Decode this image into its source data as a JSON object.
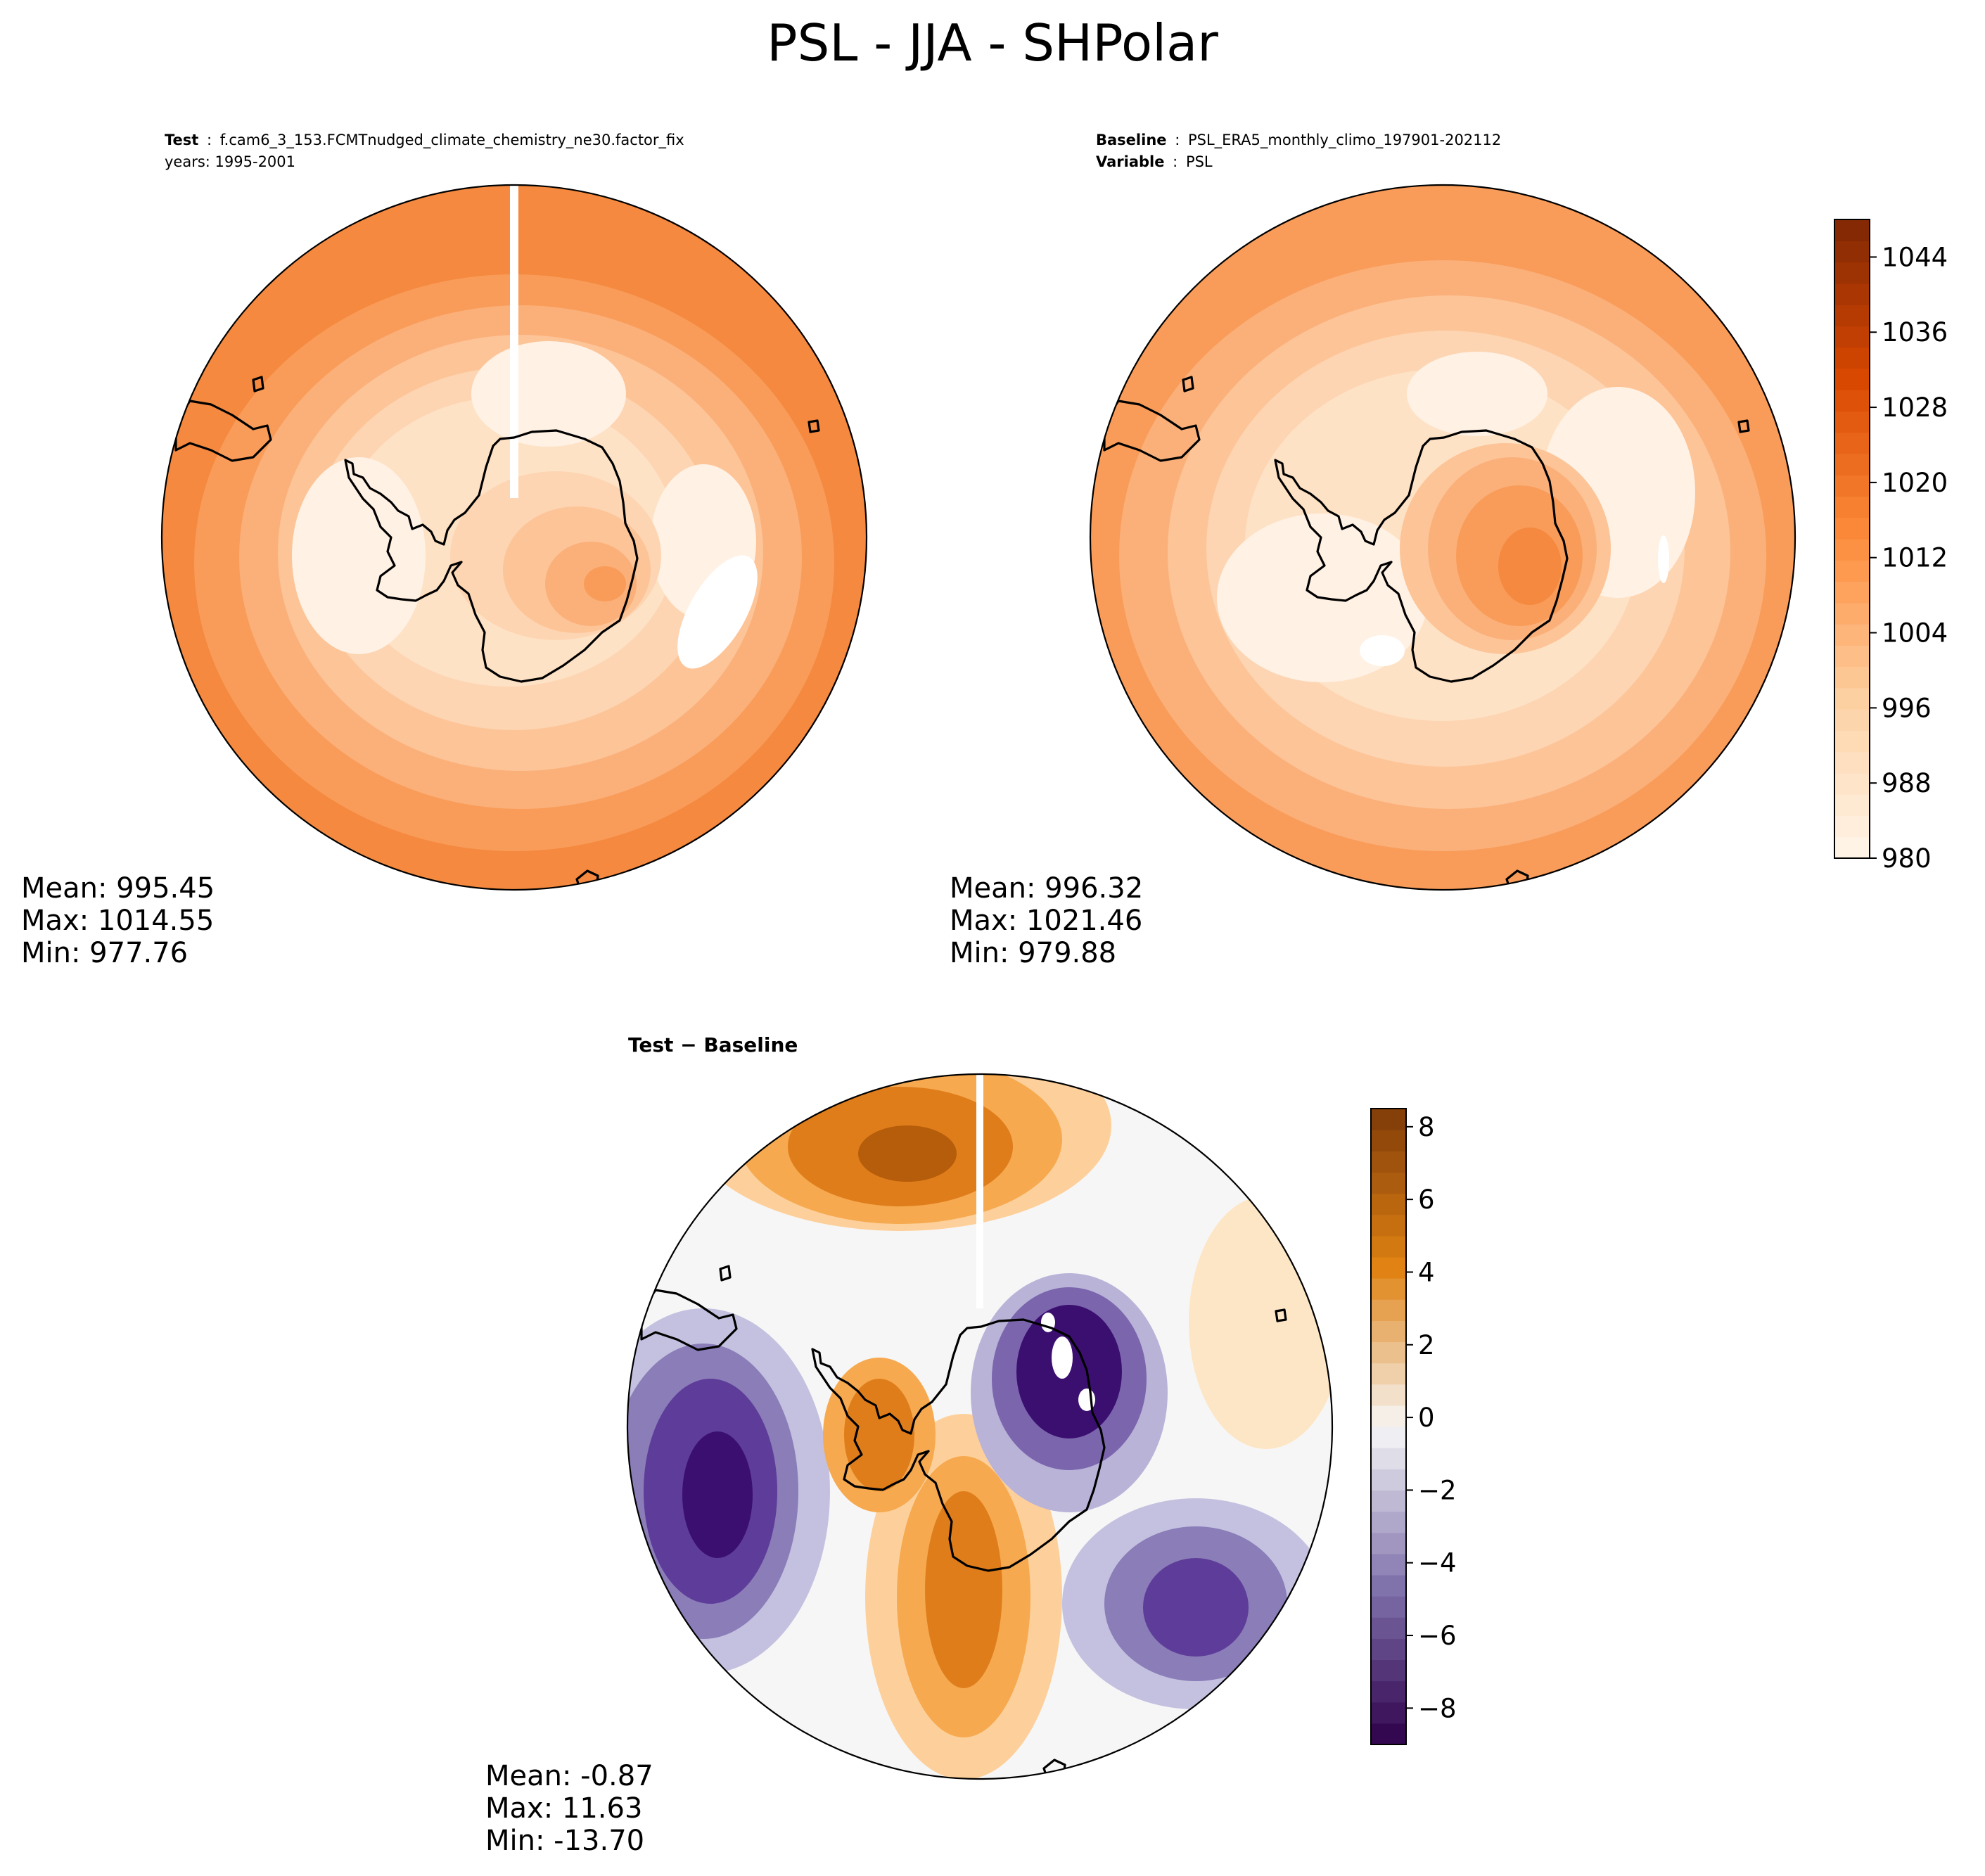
{
  "figure": {
    "suptitle": "PSL - JJA - SHPolar"
  },
  "panels": [
    {
      "id": "test",
      "title_lines": [
        {
          "key": "Test",
          "sep": ":",
          "value": "f.cam6_3_153.FCMTnudged_climate_chemistry_ne30.factor_fix"
        },
        {
          "key": "",
          "sep": "",
          "value": "years: 1995-2001"
        }
      ],
      "stats": {
        "mean": "Mean: 995.45",
        "max": "Max: 1014.55",
        "min": "Min: 977.76"
      }
    },
    {
      "id": "baseline",
      "title_lines": [
        {
          "key": "Baseline",
          "sep": ":",
          "value": "PSL_ERA5_monthly_climo_197901-202112"
        },
        {
          "key": "Variable",
          "sep": ":",
          "value": "PSL"
        }
      ],
      "stats": {
        "mean": "Mean: 996.32",
        "max": "Max: 1021.46",
        "min": "Min: 979.88"
      }
    },
    {
      "id": "diff",
      "title_text": "Test − Baseline",
      "stats": {
        "mean": "Mean: -0.87",
        "max": "Max: 11.63",
        "min": "Min: -13.70"
      }
    }
  ],
  "colorbars": [
    {
      "id": "field",
      "cmap": "Oranges",
      "vmin": 980,
      "vmax": 1048,
      "ticks": [
        980,
        988,
        996,
        1004,
        1012,
        1020,
        1028,
        1036,
        1044
      ],
      "tick_labels": [
        "980",
        "988",
        "996",
        "1004",
        "1012",
        "1020",
        "1028",
        "1036",
        "1044"
      ]
    },
    {
      "id": "diff",
      "cmap": "PuOr_r",
      "vmin": -9,
      "vmax": 8.5,
      "ticks": [
        -8,
        -6,
        -4,
        -2,
        0,
        2,
        4,
        6,
        8
      ],
      "tick_labels": [
        "−8",
        "−6",
        "−4",
        "−2",
        "0",
        "2",
        "4",
        "6",
        "8"
      ]
    }
  ],
  "chart_data": [
    {
      "type": "heatmap",
      "title": "Test : f.cam6_3_153.FCMTnudged_climate_chemistry_ne30.factor_fix years: 1995-2001",
      "projection": "south polar stereographic",
      "variable": "PSL",
      "stats": {
        "mean": 995.45,
        "max": 1014.55,
        "min": 977.76
      },
      "field_features": [
        {
          "lon": 0,
          "lat": -90,
          "value": 1004
        },
        {
          "lon": 60,
          "lat": -85,
          "value": 1010
        },
        {
          "lon": -90,
          "lat": -62,
          "value": 980
        },
        {
          "lon": 90,
          "lat": -58,
          "value": 979
        },
        {
          "lon": 120,
          "lat": -55,
          "value": 982
        },
        {
          "lon": -150,
          "lat": -45,
          "value": 1012
        },
        {
          "lon": 30,
          "lat": -42,
          "value": 1010
        }
      ]
    },
    {
      "type": "heatmap",
      "title": "Baseline : PSL_ERA5_monthly_climo_197901-202112 Variable : PSL",
      "projection": "south polar stereographic",
      "variable": "PSL",
      "stats": {
        "mean": 996.32,
        "max": 1021.46,
        "min": 979.88
      },
      "field_features": [
        {
          "lon": 0,
          "lat": -90,
          "value": 1006
        },
        {
          "lon": 60,
          "lat": -80,
          "value": 1014
        },
        {
          "lon": -90,
          "lat": -62,
          "value": 982
        },
        {
          "lon": 90,
          "lat": -58,
          "value": 984
        },
        {
          "lon": 45,
          "lat": -65,
          "value": 980
        },
        {
          "lon": 150,
          "lat": -55,
          "value": 981
        },
        {
          "lon": -150,
          "lat": -45,
          "value": 1010
        }
      ]
    },
    {
      "type": "heatmap",
      "title": "Test − Baseline",
      "projection": "south polar stereographic",
      "variable": "PSL",
      "stats": {
        "mean": -0.87,
        "max": 11.63,
        "min": -13.7
      },
      "field_features": [
        {
          "lon": -165,
          "lat": -50,
          "value": 6
        },
        {
          "lon": 0,
          "lat": -60,
          "value": 5
        },
        {
          "lon": 100,
          "lat": -55,
          "value": -8
        },
        {
          "lon": 35,
          "lat": -55,
          "value": -6
        },
        {
          "lon": 60,
          "lat": -80,
          "value": -9
        },
        {
          "lon": -70,
          "lat": -75,
          "value": 5
        },
        {
          "lon": 150,
          "lat": -55,
          "value": -2
        }
      ]
    }
  ]
}
